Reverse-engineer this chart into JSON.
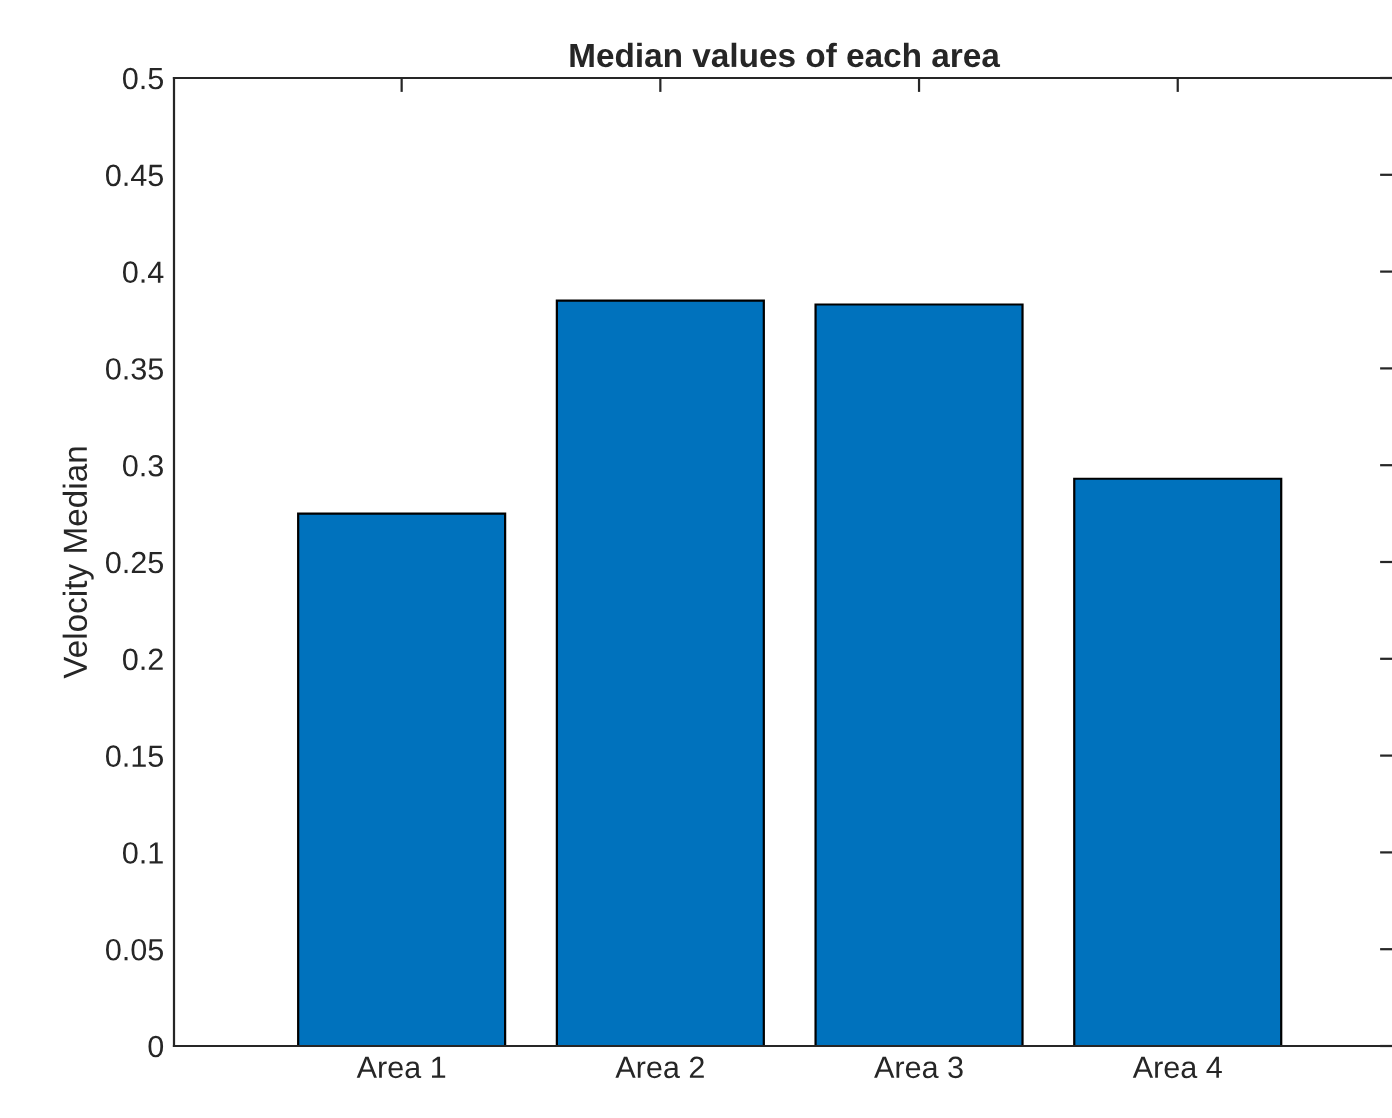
{
  "chart_data": {
    "type": "bar",
    "title": "Median values of each area",
    "ylabel": "Velocity Median",
    "categories": [
      "Area 1",
      "Area 2",
      "Area 3",
      "Area 4"
    ],
    "values": [
      0.275,
      0.385,
      0.383,
      0.293
    ],
    "color": "#0072bd",
    "ylim": [
      0,
      0.5
    ],
    "yticks": [
      0,
      0.05,
      0.1,
      0.15,
      0.2,
      0.25,
      0.3,
      0.35,
      0.4,
      0.45,
      0.5
    ],
    "grid": false,
    "legend": false
  }
}
